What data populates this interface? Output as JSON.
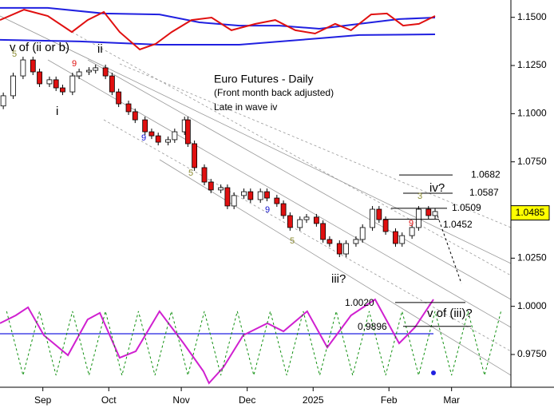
{
  "chart_data": {
    "type": "candlestick",
    "title": "Euro Futures - Daily",
    "subtitle": "(Front month back adjusted)",
    "note": "Late in wave iv",
    "up_color": "#ffffff",
    "down_color": "#e01010",
    "x": [
      1,
      4,
      7,
      10,
      12,
      15,
      17,
      19,
      22,
      24,
      27,
      29,
      32,
      34,
      36,
      39,
      41,
      44,
      46,
      48,
      51,
      53,
      56,
      57,
      59,
      62,
      64,
      67,
      69,
      71,
      74,
      76,
      79,
      81,
      84,
      86,
      88,
      91,
      93,
      96,
      98,
      100,
      103,
      105,
      108,
      110,
      113,
      115,
      117,
      120,
      122,
      125,
      127,
      130,
      132
    ],
    "open": [
      1.104,
      1.1093,
      1.1196,
      1.1279,
      1.1217,
      1.1155,
      1.1176,
      1.1134,
      1.1113,
      1.1196,
      1.1217,
      1.1225,
      1.1238,
      1.1196,
      1.1113,
      1.1051,
      1.101,
      1.0968,
      1.0906,
      1.0885,
      1.0852,
      1.0865,
      1.0906,
      1.0968,
      1.0844,
      1.072,
      1.0645,
      1.0604,
      1.0616,
      1.0521,
      1.0575,
      1.0595,
      1.0554,
      1.0595,
      1.0562,
      1.0533,
      1.0471,
      1.0409,
      1.045,
      1.0463,
      1.043,
      1.0347,
      1.0326,
      1.0272,
      1.0326,
      1.0347,
      1.0409,
      1.0504,
      1.045,
      1.0388,
      1.0326,
      1.0367,
      1.0409,
      1.0504,
      1.0471
    ],
    "close": [
      1.1093,
      1.1196,
      1.1279,
      1.1217,
      1.1155,
      1.1176,
      1.1134,
      1.1113,
      1.1196,
      1.1217,
      1.1225,
      1.1238,
      1.1196,
      1.1113,
      1.1051,
      1.101,
      1.0968,
      1.0906,
      1.0885,
      1.0852,
      1.0865,
      1.0906,
      1.0968,
      1.0844,
      1.072,
      1.0645,
      1.0604,
      1.0616,
      1.0521,
      1.0575,
      1.0595,
      1.0554,
      1.0595,
      1.0562,
      1.0533,
      1.0471,
      1.0409,
      1.045,
      1.0463,
      1.043,
      1.0347,
      1.0326,
      1.0272,
      1.0326,
      1.0347,
      1.0409,
      1.0504,
      1.045,
      1.0388,
      1.0326,
      1.0367,
      1.0409,
      1.0504,
      1.0471,
      1.0492
    ],
    "last_price": 1.0485,
    "xlim": [
      0,
      155
    ],
    "ylim": [
      0.958,
      1.159
    ],
    "xticks": [
      {
        "value": 13,
        "label": "Sep"
      },
      {
        "value": 33,
        "label": "Oct"
      },
      {
        "value": 55,
        "label": "Nov"
      },
      {
        "value": 75,
        "label": "Dec"
      },
      {
        "value": 95,
        "label": "2025"
      },
      {
        "value": 118,
        "label": "Feb"
      },
      {
        "value": 137,
        "label": "Mar"
      }
    ],
    "yticks": [
      {
        "value": 1.15,
        "label": "1.1500"
      },
      {
        "value": 1.125,
        "label": "1.1250"
      },
      {
        "value": 1.1,
        "label": "1.1000"
      },
      {
        "value": 1.075,
        "label": "1.0750"
      },
      {
        "value": 1.05,
        "label": "1.0500"
      },
      {
        "value": 1.025,
        "label": "1.0250"
      },
      {
        "value": 1.0,
        "label": "1.0000"
      },
      {
        "value": 0.975,
        "label": "0.9750"
      }
    ],
    "levels": [
      1.0682,
      1.0587,
      1.0509,
      1.0452,
      {
        "value": 1.002,
        "label": "1.0020"
      },
      0.9896
    ],
    "annotations": [
      {
        "text": "v of (ii or b)",
        "color": "#000000"
      },
      {
        "text": "ii",
        "color": "#000000"
      },
      {
        "text": "i",
        "color": "#000000"
      },
      {
        "text": "iii?",
        "color": "#000000"
      },
      {
        "text": "iv?",
        "color": "#000000"
      },
      {
        "text": "v of (iii)?",
        "color": "#000000"
      },
      {
        "text": "5",
        "color": "#8a8a30"
      },
      {
        "text": "9",
        "color": "#e01010"
      },
      {
        "text": "9",
        "color": "#1010d0"
      },
      {
        "text": "5",
        "color": "#8a8a30"
      },
      {
        "text": "9",
        "color": "#1010d0"
      },
      {
        "text": "5",
        "color": "#8a8a30"
      },
      {
        "text": "3",
        "color": "#8a8a30"
      },
      {
        "text": "9",
        "color": "#e01010"
      }
    ],
    "series": [
      {
        "color": "#2020e0",
        "dash": false,
        "x": [
          0,
          14.5,
          31.5,
          48.4,
          60.5,
          72.6,
          84.7,
          96.9,
          109,
          121.1,
          132
        ],
        "values": [
          1.1549,
          1.1549,
          1.152,
          1.1515,
          1.1474,
          1.1457,
          1.1457,
          1.1441,
          1.1466,
          1.1491,
          1.1499
        ]
      },
      {
        "color": "#2020e0",
        "dash": false,
        "x": [
          0,
          24.2,
          48.4,
          72.6,
          96.9,
          109,
          132
        ],
        "values": [
          1.1383,
          1.1375,
          1.1358,
          1.1358,
          1.1391,
          1.1408,
          1.1412
        ]
      },
      {
        "color": "#e01010",
        "dash": false,
        "x": [
          0,
          7.3,
          14.5,
          21.8,
          26.6,
          31.5,
          36.3,
          42.4,
          47.2,
          52.1,
          58.1,
          64.2,
          70.2,
          77.5,
          83.5,
          89.6,
          95.6,
          101.7,
          106.5,
          112.6,
          117.4,
          122.3,
          127.1,
          132
        ],
        "values": [
          1.1486,
          1.154,
          1.1507,
          1.1424,
          1.1486,
          1.1528,
          1.1424,
          1.1333,
          1.1362,
          1.1424,
          1.1486,
          1.1499,
          1.1433,
          1.1466,
          1.1486,
          1.1433,
          1.1416,
          1.1466,
          1.1433,
          1.1515,
          1.152,
          1.1457,
          1.1466,
          1.1507
        ]
      },
      {
        "color": "#d020d0",
        "dash": false,
        "x": [
          0,
          4.8,
          8.5,
          13.3,
          20.6,
          26.6,
          30.3,
          36.3,
          41.2,
          48.4,
          55.7,
          61.7,
          63.4,
          67.8,
          73.8,
          81.1,
          86,
          93.2,
          99.3,
          106.5,
          113.8,
          121.1,
          125.9,
          131.5
        ],
        "values": [
          0.9912,
          0.9953,
          0.9995,
          0.985,
          0.9746,
          0.9932,
          0.9966,
          0.9733,
          0.9767,
          0.9974,
          0.9808,
          0.9663,
          0.9601,
          0.9684,
          0.985,
          0.9912,
          0.987,
          0.9974,
          0.9787,
          0.9953,
          1.0036,
          0.9808,
          0.9891,
          1.0036
        ]
      },
      {
        "color": "#109010",
        "dash": true,
        "x": [
          2,
          7,
          12,
          17,
          22,
          27,
          32,
          37,
          42,
          47,
          52,
          57,
          62,
          67,
          72,
          77,
          82,
          87,
          92,
          97,
          102,
          107,
          112,
          117,
          122,
          127,
          132,
          137,
          142,
          147,
          152
        ],
        "values": [
          0.9974,
          0.9642,
          0.9974,
          0.9642,
          0.9974,
          0.9642,
          0.9974,
          0.9642,
          0.9974,
          0.9642,
          0.9974,
          0.9642,
          0.9974,
          0.9642,
          0.9974,
          0.9642,
          0.9974,
          0.9642,
          0.9974,
          0.9642,
          0.9974,
          0.9642,
          0.9974,
          0.9642,
          0.9974,
          0.9642,
          0.9974,
          0.9642,
          0.9974,
          0.9642,
          0.9974
        ]
      }
    ]
  }
}
